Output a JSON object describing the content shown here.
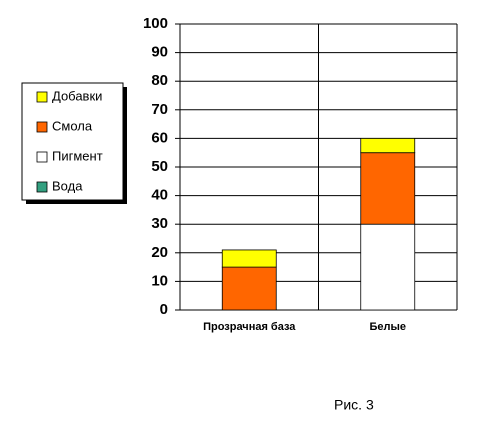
{
  "chart_data": {
    "type": "stacked_bar",
    "categories": [
      "Прозрачная база",
      "Белые"
    ],
    "series": [
      {
        "name": "Вода",
        "color": "#33a080",
        "values": [
          0,
          0
        ]
      },
      {
        "name": "Пигмент",
        "color": "#ffffff",
        "values": [
          0,
          30
        ]
      },
      {
        "name": "Смола",
        "color": "#ff6600",
        "values": [
          15,
          25
        ]
      },
      {
        "name": "Добавки",
        "color": "#ffff00",
        "values": [
          6,
          5
        ]
      }
    ],
    "ylim": [
      0,
      100
    ],
    "yticks": [
      0,
      10,
      20,
      30,
      40,
      50,
      60,
      70,
      80,
      90,
      100
    ],
    "grid": true,
    "legend": "left",
    "caption": "Рис. 3"
  }
}
